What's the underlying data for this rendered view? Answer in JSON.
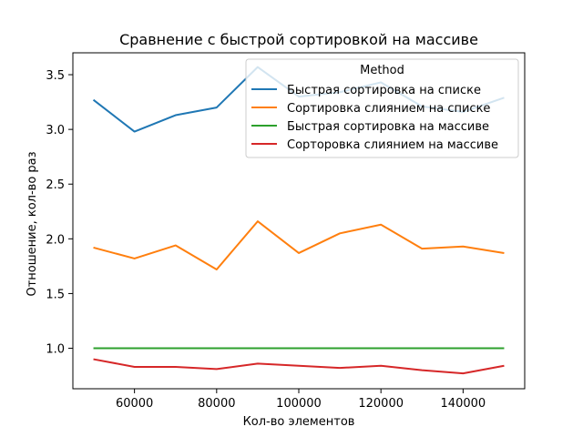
{
  "chart_data": {
    "type": "line",
    "title": "Сравнение с быстрой сортировкой на массиве",
    "xlabel": "Кол-во элементов",
    "ylabel": "Отношение, кол-во раз",
    "x": [
      50000,
      60000,
      70000,
      80000,
      90000,
      100000,
      110000,
      120000,
      130000,
      140000,
      150000
    ],
    "xlim": [
      45000,
      155000
    ],
    "ylim": [
      0.63,
      3.7
    ],
    "xticks": [
      60000,
      80000,
      100000,
      120000,
      140000
    ],
    "xtick_labels": [
      "60000",
      "80000",
      "100000",
      "120000",
      "140000"
    ],
    "yticks": [
      1.0,
      1.5,
      2.0,
      2.5,
      3.0,
      3.5
    ],
    "ytick_labels": [
      "1.0",
      "1.5",
      "2.0",
      "2.5",
      "3.0",
      "3.5"
    ],
    "grid": false,
    "legend": {
      "title": "Method",
      "placement": "top-right"
    },
    "series": [
      {
        "name": "Быстрая сортировка на списке",
        "color": "#1f77b4",
        "values": [
          3.27,
          2.98,
          3.13,
          3.2,
          3.57,
          3.3,
          3.34,
          3.43,
          3.21,
          3.16,
          3.29
        ]
      },
      {
        "name": "Сортировка слиянием на списке",
        "color": "#ff7f0e",
        "values": [
          1.92,
          1.82,
          1.94,
          1.72,
          2.16,
          1.87,
          2.05,
          2.13,
          1.91,
          1.93,
          1.87
        ]
      },
      {
        "name": "Быстрая сортировка на массиве",
        "color": "#2ca02c",
        "values": [
          1.0,
          1.0,
          1.0,
          1.0,
          1.0,
          1.0,
          1.0,
          1.0,
          1.0,
          1.0,
          1.0
        ]
      },
      {
        "name": "Сорторовка слиянием на массиве",
        "color": "#d62728",
        "values": [
          0.9,
          0.83,
          0.83,
          0.81,
          0.86,
          0.84,
          0.82,
          0.84,
          0.8,
          0.77,
          0.84
        ]
      }
    ]
  }
}
